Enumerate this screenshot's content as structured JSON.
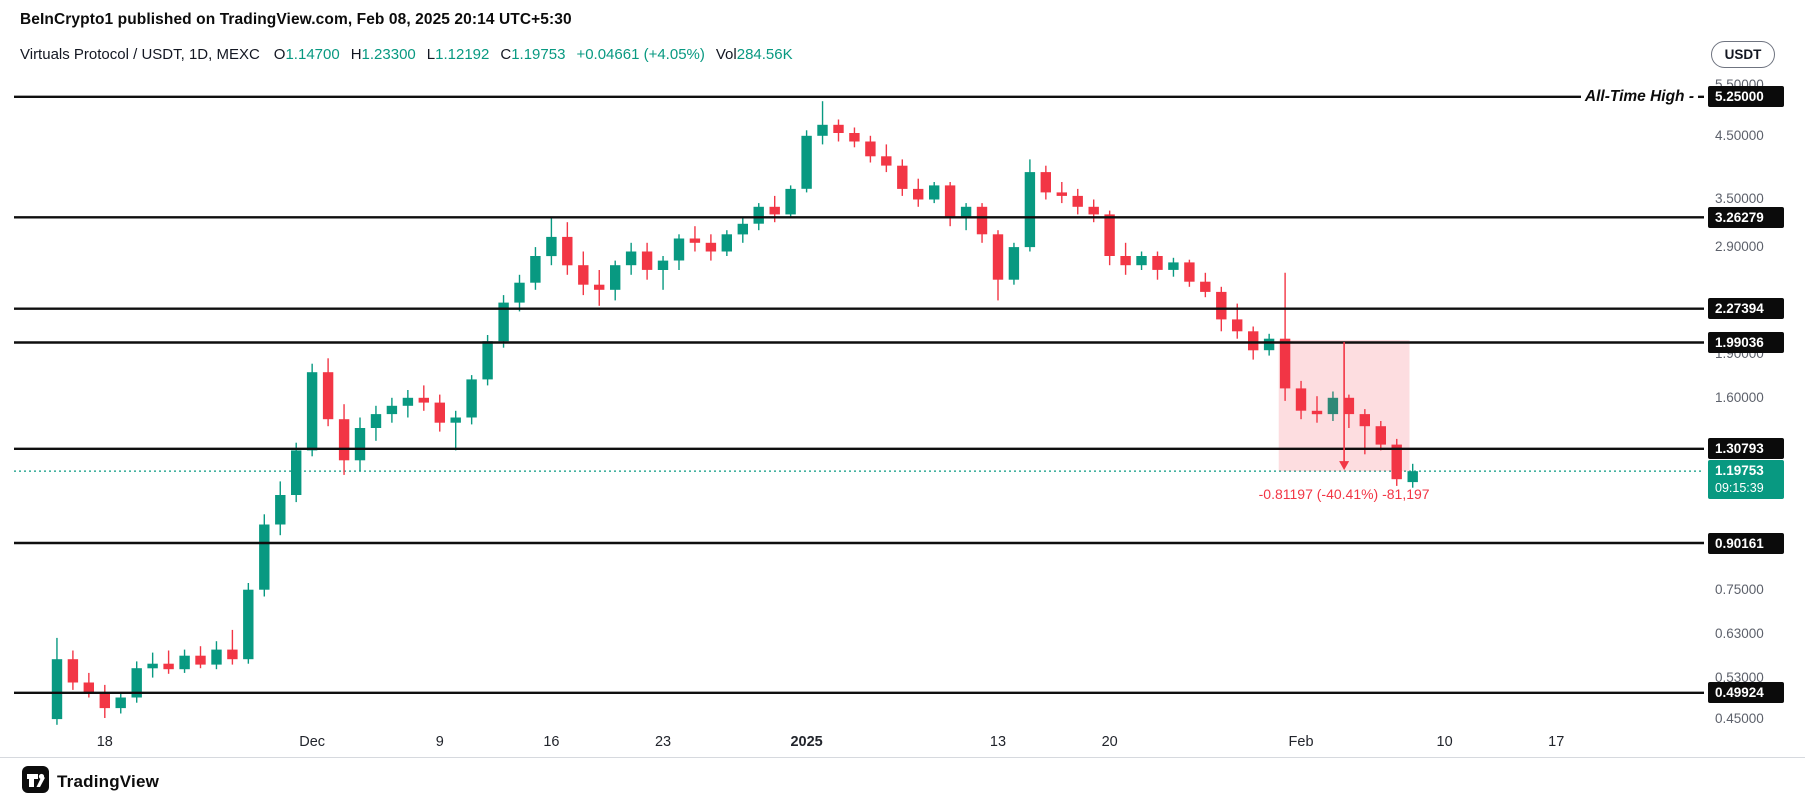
{
  "header": {
    "attribution": "BeInCrypto1 published on TradingView.com, Feb 08, 2025 20:14 UTC+5:30"
  },
  "toolbar": {
    "currency_label": "USDT"
  },
  "legend": {
    "symbol": "Virtuals Protocol / USDT, 1D, MEXC",
    "o_label": "O",
    "o_value": "1.14700",
    "h_label": "H",
    "h_value": "1.23300",
    "l_label": "L",
    "l_value": "1.12192",
    "c_label": "C",
    "c_value": "1.19753",
    "change": "+0.04661 (+4.05%)",
    "vol_label": "Vol",
    "vol_value": "284.56K"
  },
  "annotations": {
    "ath_label": "All-Time High -"
  },
  "current_price": {
    "value": 1.19753,
    "label": "1.19753",
    "countdown": "09:15:39"
  },
  "footer": {
    "brand": "TradingView"
  },
  "colors": {
    "up": "#089981",
    "down": "#f23645",
    "level_line": "#0f0f0f"
  },
  "chart_data": {
    "type": "candlestick",
    "title": "Virtuals Protocol / USDT, 1D, MEXC",
    "symbol": "Virtuals Protocol / USDT",
    "interval": "1D",
    "exchange": "MEXC",
    "y_axis": {
      "scale": "log",
      "range": [
        0.42,
        5.6
      ],
      "ticks": [
        {
          "value": 5.5,
          "label": "5.50000"
        },
        {
          "value": 4.5,
          "label": "4.50000"
        },
        {
          "value": 3.5,
          "label": "3.50000"
        },
        {
          "value": 2.9,
          "label": "2.90000"
        },
        {
          "value": 1.9,
          "label": "1.90000"
        },
        {
          "value": 1.6,
          "label": "1.60000"
        },
        {
          "value": 0.75,
          "label": "0.75000"
        },
        {
          "value": 0.63,
          "label": "0.63000"
        },
        {
          "value": 0.53,
          "label": "0.53000"
        },
        {
          "value": 0.45,
          "label": "0.45000"
        }
      ]
    },
    "x_axis": {
      "first_candle_day": -3,
      "ticks": [
        {
          "label": "18",
          "d": 0
        },
        {
          "label": "Dec",
          "d": 13
        },
        {
          "label": "9",
          "d": 21
        },
        {
          "label": "16",
          "d": 28
        },
        {
          "label": "23",
          "d": 35
        },
        {
          "label": "2025",
          "d": 44,
          "bold": true
        },
        {
          "label": "13",
          "d": 56
        },
        {
          "label": "20",
          "d": 63
        },
        {
          "label": "Feb",
          "d": 75
        },
        {
          "label": "10",
          "d": 84
        },
        {
          "label": "17",
          "d": 91
        }
      ]
    },
    "levels": [
      {
        "value": 5.25,
        "label": "5.25000",
        "note": "All-Time High"
      },
      {
        "value": 3.26279,
        "label": "3.26279"
      },
      {
        "value": 2.27394,
        "label": "2.27394"
      },
      {
        "value": 1.99036,
        "label": "1.99036"
      },
      {
        "value": 1.30793,
        "label": "1.30793"
      },
      {
        "value": 0.90161,
        "label": "0.90161"
      },
      {
        "value": 0.49924,
        "label": "0.49924"
      }
    ],
    "measure": {
      "from_day": 73.6,
      "to_day": 81.8,
      "from_price": 2.0095,
      "to_price": 1.19753,
      "label": "-0.81197 (-40.41%) -81,197"
    },
    "candles": [
      {
        "t": "Nov 15",
        "o": 0.45,
        "h": 0.62,
        "l": 0.44,
        "c": 0.57
      },
      {
        "t": "Nov 16",
        "o": 0.57,
        "h": 0.59,
        "l": 0.505,
        "c": 0.52
      },
      {
        "t": "Nov 17",
        "o": 0.52,
        "h": 0.54,
        "l": 0.49,
        "c": 0.5
      },
      {
        "t": "Nov 18",
        "o": 0.5,
        "h": 0.515,
        "l": 0.452,
        "c": 0.47
      },
      {
        "t": "Nov 19",
        "o": 0.47,
        "h": 0.5,
        "l": 0.46,
        "c": 0.49
      },
      {
        "t": "Nov 20",
        "o": 0.49,
        "h": 0.565,
        "l": 0.48,
        "c": 0.55
      },
      {
        "t": "Nov 21",
        "o": 0.55,
        "h": 0.585,
        "l": 0.53,
        "c": 0.56
      },
      {
        "t": "Nov 22",
        "o": 0.56,
        "h": 0.59,
        "l": 0.538,
        "c": 0.548
      },
      {
        "t": "Nov 23",
        "o": 0.548,
        "h": 0.592,
        "l": 0.54,
        "c": 0.578
      },
      {
        "t": "Nov 24",
        "o": 0.578,
        "h": 0.6,
        "l": 0.55,
        "c": 0.558
      },
      {
        "t": "Nov 25",
        "o": 0.558,
        "h": 0.612,
        "l": 0.548,
        "c": 0.592
      },
      {
        "t": "Nov 26",
        "o": 0.592,
        "h": 0.64,
        "l": 0.558,
        "c": 0.57
      },
      {
        "t": "Nov 27",
        "o": 0.57,
        "h": 0.77,
        "l": 0.56,
        "c": 0.75
      },
      {
        "t": "Nov 28",
        "o": 0.75,
        "h": 1.01,
        "l": 0.73,
        "c": 0.97
      },
      {
        "t": "Nov 29",
        "o": 0.97,
        "h": 1.15,
        "l": 0.93,
        "c": 1.09
      },
      {
        "t": "Nov 30",
        "o": 1.09,
        "h": 1.34,
        "l": 1.06,
        "c": 1.3
      },
      {
        "t": "Dec 1",
        "o": 1.3,
        "h": 1.83,
        "l": 1.27,
        "c": 1.77
      },
      {
        "t": "Dec 2",
        "o": 1.77,
        "h": 1.87,
        "l": 1.43,
        "c": 1.47
      },
      {
        "t": "Dec 3",
        "o": 1.47,
        "h": 1.56,
        "l": 1.18,
        "c": 1.25
      },
      {
        "t": "Dec 4",
        "o": 1.25,
        "h": 1.48,
        "l": 1.2,
        "c": 1.42
      },
      {
        "t": "Dec 5",
        "o": 1.42,
        "h": 1.55,
        "l": 1.35,
        "c": 1.5
      },
      {
        "t": "Dec 6",
        "o": 1.5,
        "h": 1.6,
        "l": 1.45,
        "c": 1.55
      },
      {
        "t": "Dec 7",
        "o": 1.55,
        "h": 1.65,
        "l": 1.48,
        "c": 1.6
      },
      {
        "t": "Dec 8",
        "o": 1.6,
        "h": 1.68,
        "l": 1.52,
        "c": 1.57
      },
      {
        "t": "Dec 9",
        "o": 1.57,
        "h": 1.62,
        "l": 1.4,
        "c": 1.45
      },
      {
        "t": "Dec 10",
        "o": 1.45,
        "h": 1.52,
        "l": 1.3,
        "c": 1.48
      },
      {
        "t": "Dec 11",
        "o": 1.48,
        "h": 1.75,
        "l": 1.44,
        "c": 1.72
      },
      {
        "t": "Dec 12",
        "o": 1.72,
        "h": 2.05,
        "l": 1.68,
        "c": 2.0
      },
      {
        "t": "Dec 13",
        "o": 2.0,
        "h": 2.4,
        "l": 1.95,
        "c": 2.33
      },
      {
        "t": "Dec 14",
        "o": 2.33,
        "h": 2.6,
        "l": 2.25,
        "c": 2.52
      },
      {
        "t": "Dec 15",
        "o": 2.52,
        "h": 2.9,
        "l": 2.45,
        "c": 2.8
      },
      {
        "t": "Dec 16",
        "o": 2.8,
        "h": 3.25,
        "l": 2.7,
        "c": 3.02
      },
      {
        "t": "Dec 17",
        "o": 3.02,
        "h": 3.2,
        "l": 2.6,
        "c": 2.7
      },
      {
        "t": "Dec 18",
        "o": 2.7,
        "h": 2.85,
        "l": 2.4,
        "c": 2.5
      },
      {
        "t": "Dec 19",
        "o": 2.5,
        "h": 2.65,
        "l": 2.3,
        "c": 2.45
      },
      {
        "t": "Dec 20",
        "o": 2.45,
        "h": 2.75,
        "l": 2.35,
        "c": 2.7
      },
      {
        "t": "Dec 21",
        "o": 2.7,
        "h": 2.95,
        "l": 2.6,
        "c": 2.85
      },
      {
        "t": "Dec 22",
        "o": 2.85,
        "h": 2.95,
        "l": 2.55,
        "c": 2.65
      },
      {
        "t": "Dec 23",
        "o": 2.65,
        "h": 2.8,
        "l": 2.45,
        "c": 2.75
      },
      {
        "t": "Dec 24",
        "o": 2.75,
        "h": 3.05,
        "l": 2.65,
        "c": 3.0
      },
      {
        "t": "Dec 25",
        "o": 3.0,
        "h": 3.15,
        "l": 2.85,
        "c": 2.95
      },
      {
        "t": "Dec 26",
        "o": 2.95,
        "h": 3.05,
        "l": 2.75,
        "c": 2.85
      },
      {
        "t": "Dec 27",
        "o": 2.85,
        "h": 3.1,
        "l": 2.8,
        "c": 3.05
      },
      {
        "t": "Dec 28",
        "o": 3.05,
        "h": 3.25,
        "l": 2.95,
        "c": 3.18
      },
      {
        "t": "Dec 29",
        "o": 3.18,
        "h": 3.45,
        "l": 3.1,
        "c": 3.4
      },
      {
        "t": "Dec 30",
        "o": 3.4,
        "h": 3.55,
        "l": 3.2,
        "c": 3.3
      },
      {
        "t": "Dec 31",
        "o": 3.3,
        "h": 3.7,
        "l": 3.25,
        "c": 3.65
      },
      {
        "t": "Jan 1",
        "o": 3.65,
        "h": 4.6,
        "l": 3.6,
        "c": 4.5
      },
      {
        "t": "Jan 2",
        "o": 4.5,
        "h": 5.16,
        "l": 4.35,
        "c": 4.7
      },
      {
        "t": "Jan 3",
        "o": 4.7,
        "h": 4.8,
        "l": 4.4,
        "c": 4.55
      },
      {
        "t": "Jan 4",
        "o": 4.55,
        "h": 4.65,
        "l": 4.3,
        "c": 4.4
      },
      {
        "t": "Jan 5",
        "o": 4.4,
        "h": 4.5,
        "l": 4.05,
        "c": 4.15
      },
      {
        "t": "Jan 6",
        "o": 4.15,
        "h": 4.35,
        "l": 3.9,
        "c": 4.0
      },
      {
        "t": "Jan 7",
        "o": 4.0,
        "h": 4.1,
        "l": 3.55,
        "c": 3.65
      },
      {
        "t": "Jan 8",
        "o": 3.65,
        "h": 3.8,
        "l": 3.4,
        "c": 3.5
      },
      {
        "t": "Jan 9",
        "o": 3.5,
        "h": 3.75,
        "l": 3.45,
        "c": 3.7
      },
      {
        "t": "Jan 10",
        "o": 3.7,
        "h": 3.75,
        "l": 3.15,
        "c": 3.25
      },
      {
        "t": "Jan 11",
        "o": 3.25,
        "h": 3.45,
        "l": 3.1,
        "c": 3.4
      },
      {
        "t": "Jan 12",
        "o": 3.4,
        "h": 3.45,
        "l": 2.95,
        "c": 3.05
      },
      {
        "t": "Jan 13",
        "o": 3.05,
        "h": 3.1,
        "l": 2.35,
        "c": 2.55
      },
      {
        "t": "Jan 14",
        "o": 2.55,
        "h": 2.95,
        "l": 2.5,
        "c": 2.9
      },
      {
        "t": "Jan 15",
        "o": 2.9,
        "h": 4.1,
        "l": 2.85,
        "c": 3.9
      },
      {
        "t": "Jan 16",
        "o": 3.9,
        "h": 4.0,
        "l": 3.5,
        "c": 3.6
      },
      {
        "t": "Jan 17",
        "o": 3.6,
        "h": 3.75,
        "l": 3.45,
        "c": 3.55
      },
      {
        "t": "Jan 18",
        "o": 3.55,
        "h": 3.65,
        "l": 3.3,
        "c": 3.4
      },
      {
        "t": "Jan 19",
        "o": 3.4,
        "h": 3.5,
        "l": 3.2,
        "c": 3.3
      },
      {
        "t": "Jan 20",
        "o": 3.3,
        "h": 3.35,
        "l": 2.7,
        "c": 2.8
      },
      {
        "t": "Jan 21",
        "o": 2.8,
        "h": 2.95,
        "l": 2.6,
        "c": 2.7
      },
      {
        "t": "Jan 22",
        "o": 2.7,
        "h": 2.85,
        "l": 2.65,
        "c": 2.8
      },
      {
        "t": "Jan 23",
        "o": 2.8,
        "h": 2.85,
        "l": 2.55,
        "c": 2.65
      },
      {
        "t": "Jan 24",
        "o": 2.65,
        "h": 2.78,
        "l": 2.58,
        "c": 2.73
      },
      {
        "t": "Jan 25",
        "o": 2.73,
        "h": 2.76,
        "l": 2.48,
        "c": 2.53
      },
      {
        "t": "Jan 26",
        "o": 2.53,
        "h": 2.62,
        "l": 2.38,
        "c": 2.43
      },
      {
        "t": "Jan 27",
        "o": 2.43,
        "h": 2.48,
        "l": 2.08,
        "c": 2.18
      },
      {
        "t": "Jan 28",
        "o": 2.18,
        "h": 2.32,
        "l": 2.02,
        "c": 2.08
      },
      {
        "t": "Jan 29",
        "o": 2.08,
        "h": 2.12,
        "l": 1.86,
        "c": 1.93
      },
      {
        "t": "Jan 30",
        "o": 1.93,
        "h": 2.06,
        "l": 1.89,
        "c": 2.02
      },
      {
        "t": "Jan 31",
        "o": 2.02,
        "h": 2.62,
        "l": 1.58,
        "c": 1.66
      },
      {
        "t": "Feb 1",
        "o": 1.66,
        "h": 1.71,
        "l": 1.47,
        "c": 1.52
      },
      {
        "t": "Feb 2",
        "o": 1.52,
        "h": 1.61,
        "l": 1.45,
        "c": 1.5
      },
      {
        "t": "Feb 3",
        "o": 1.5,
        "h": 1.64,
        "l": 1.46,
        "c": 1.6
      },
      {
        "t": "Feb 4",
        "o": 1.6,
        "h": 1.62,
        "l": 1.42,
        "c": 1.5
      },
      {
        "t": "Feb 5",
        "o": 1.5,
        "h": 1.53,
        "l": 1.28,
        "c": 1.43
      },
      {
        "t": "Feb 6",
        "o": 1.43,
        "h": 1.46,
        "l": 1.3,
        "c": 1.33
      },
      {
        "t": "Feb 7",
        "o": 1.33,
        "h": 1.36,
        "l": 1.13,
        "c": 1.16
      },
      {
        "t": "Feb 8",
        "o": 1.147,
        "h": 1.233,
        "l": 1.12192,
        "c": 1.19753
      }
    ]
  }
}
